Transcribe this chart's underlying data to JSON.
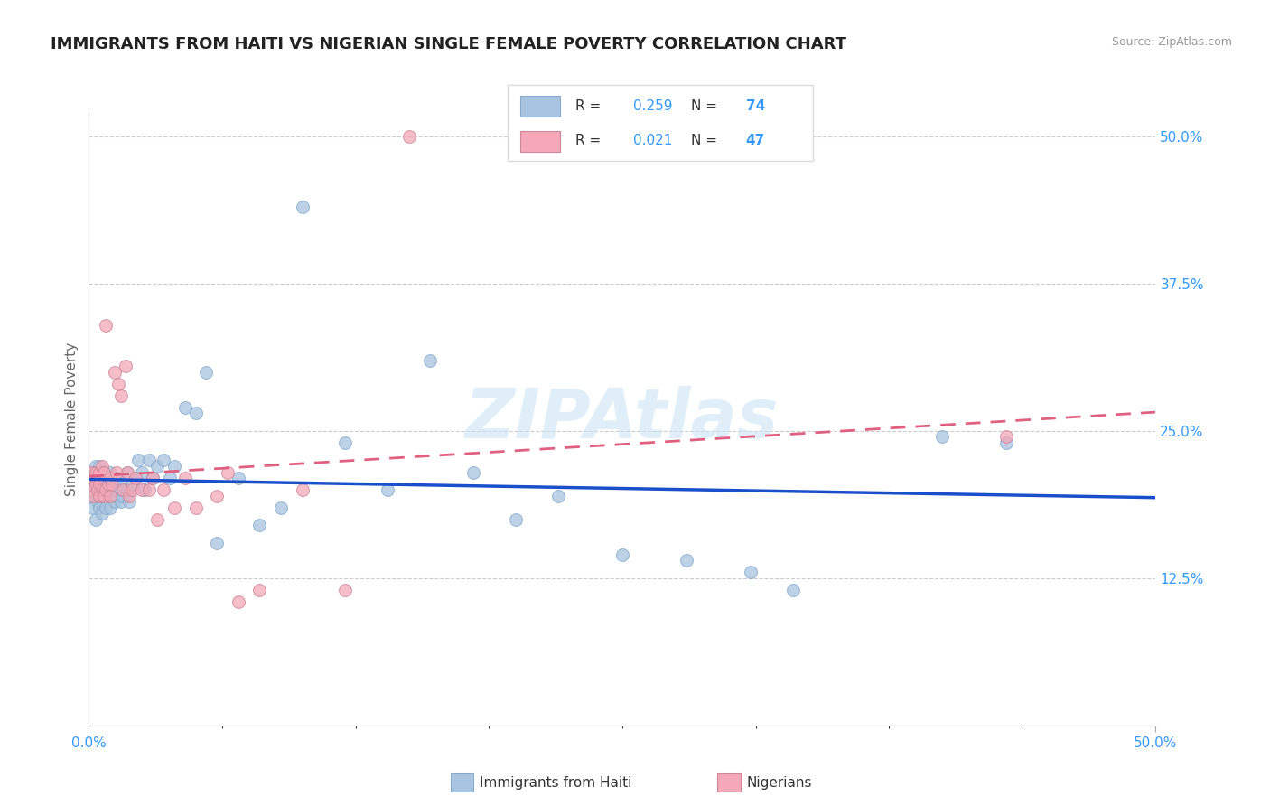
{
  "title": "IMMIGRANTS FROM HAITI VS NIGERIAN SINGLE FEMALE POVERTY CORRELATION CHART",
  "source": "Source: ZipAtlas.com",
  "ylabel": "Single Female Poverty",
  "xlim": [
    0.0,
    0.5
  ],
  "ylim": [
    0.0,
    0.52
  ],
  "xticks": [
    0.0,
    0.5
  ],
  "xtick_labels": [
    "0.0%",
    "50.0%"
  ],
  "yticks": [
    0.125,
    0.25,
    0.375,
    0.5
  ],
  "ytick_labels": [
    "12.5%",
    "25.0%",
    "37.5%",
    "50.0%"
  ],
  "legend_haiti": "Immigrants from Haiti",
  "legend_nigeria": "Nigerians",
  "haiti_R": "0.259",
  "haiti_N": "74",
  "nigeria_R": "0.021",
  "nigeria_N": "47",
  "haiti_color": "#a8c4e0",
  "nigeria_color": "#f4a8b8",
  "haiti_line_color": "#1a4fcc",
  "nigeria_line_color": "#e06080",
  "watermark": "ZIPAtlas",
  "background_color": "#ffffff",
  "title_color": "#222222",
  "grid_color": "#cccccc",
  "haiti_x": [
    0.001,
    0.001,
    0.002,
    0.002,
    0.002,
    0.003,
    0.003,
    0.003,
    0.003,
    0.004,
    0.004,
    0.004,
    0.004,
    0.005,
    0.005,
    0.005,
    0.005,
    0.005,
    0.006,
    0.006,
    0.006,
    0.007,
    0.007,
    0.007,
    0.008,
    0.008,
    0.009,
    0.009,
    0.01,
    0.01,
    0.011,
    0.012,
    0.012,
    0.013,
    0.013,
    0.014,
    0.015,
    0.015,
    0.016,
    0.017,
    0.018,
    0.018,
    0.019,
    0.02,
    0.022,
    0.023,
    0.025,
    0.026,
    0.028,
    0.03,
    0.032,
    0.035,
    0.038,
    0.04,
    0.045,
    0.05,
    0.055,
    0.06,
    0.07,
    0.08,
    0.09,
    0.1,
    0.12,
    0.14,
    0.16,
    0.18,
    0.2,
    0.22,
    0.25,
    0.28,
    0.31,
    0.33,
    0.4,
    0.43
  ],
  "haiti_y": [
    0.21,
    0.195,
    0.2,
    0.215,
    0.185,
    0.21,
    0.22,
    0.195,
    0.175,
    0.205,
    0.19,
    0.215,
    0.2,
    0.195,
    0.21,
    0.185,
    0.22,
    0.2,
    0.195,
    0.215,
    0.18,
    0.205,
    0.215,
    0.195,
    0.2,
    0.185,
    0.21,
    0.2,
    0.185,
    0.215,
    0.2,
    0.205,
    0.19,
    0.21,
    0.195,
    0.2,
    0.19,
    0.205,
    0.195,
    0.2,
    0.215,
    0.2,
    0.19,
    0.205,
    0.21,
    0.225,
    0.215,
    0.2,
    0.225,
    0.21,
    0.22,
    0.225,
    0.21,
    0.22,
    0.27,
    0.265,
    0.3,
    0.155,
    0.21,
    0.17,
    0.185,
    0.44,
    0.24,
    0.2,
    0.31,
    0.215,
    0.175,
    0.195,
    0.145,
    0.14,
    0.13,
    0.115,
    0.245,
    0.24
  ],
  "nigeria_x": [
    0.001,
    0.001,
    0.002,
    0.002,
    0.003,
    0.003,
    0.004,
    0.004,
    0.005,
    0.005,
    0.005,
    0.006,
    0.006,
    0.007,
    0.007,
    0.008,
    0.008,
    0.009,
    0.01,
    0.01,
    0.011,
    0.012,
    0.013,
    0.014,
    0.015,
    0.016,
    0.017,
    0.018,
    0.019,
    0.02,
    0.022,
    0.025,
    0.028,
    0.03,
    0.032,
    0.035,
    0.04,
    0.045,
    0.05,
    0.06,
    0.07,
    0.08,
    0.1,
    0.12,
    0.15,
    0.065,
    0.43
  ],
  "nigeria_y": [
    0.2,
    0.215,
    0.21,
    0.195,
    0.205,
    0.215,
    0.2,
    0.21,
    0.195,
    0.215,
    0.205,
    0.2,
    0.22,
    0.195,
    0.215,
    0.2,
    0.34,
    0.205,
    0.21,
    0.195,
    0.205,
    0.3,
    0.215,
    0.29,
    0.28,
    0.2,
    0.305,
    0.215,
    0.195,
    0.2,
    0.21,
    0.2,
    0.2,
    0.21,
    0.175,
    0.2,
    0.185,
    0.21,
    0.185,
    0.195,
    0.105,
    0.115,
    0.2,
    0.115,
    0.5,
    0.215,
    0.245
  ]
}
